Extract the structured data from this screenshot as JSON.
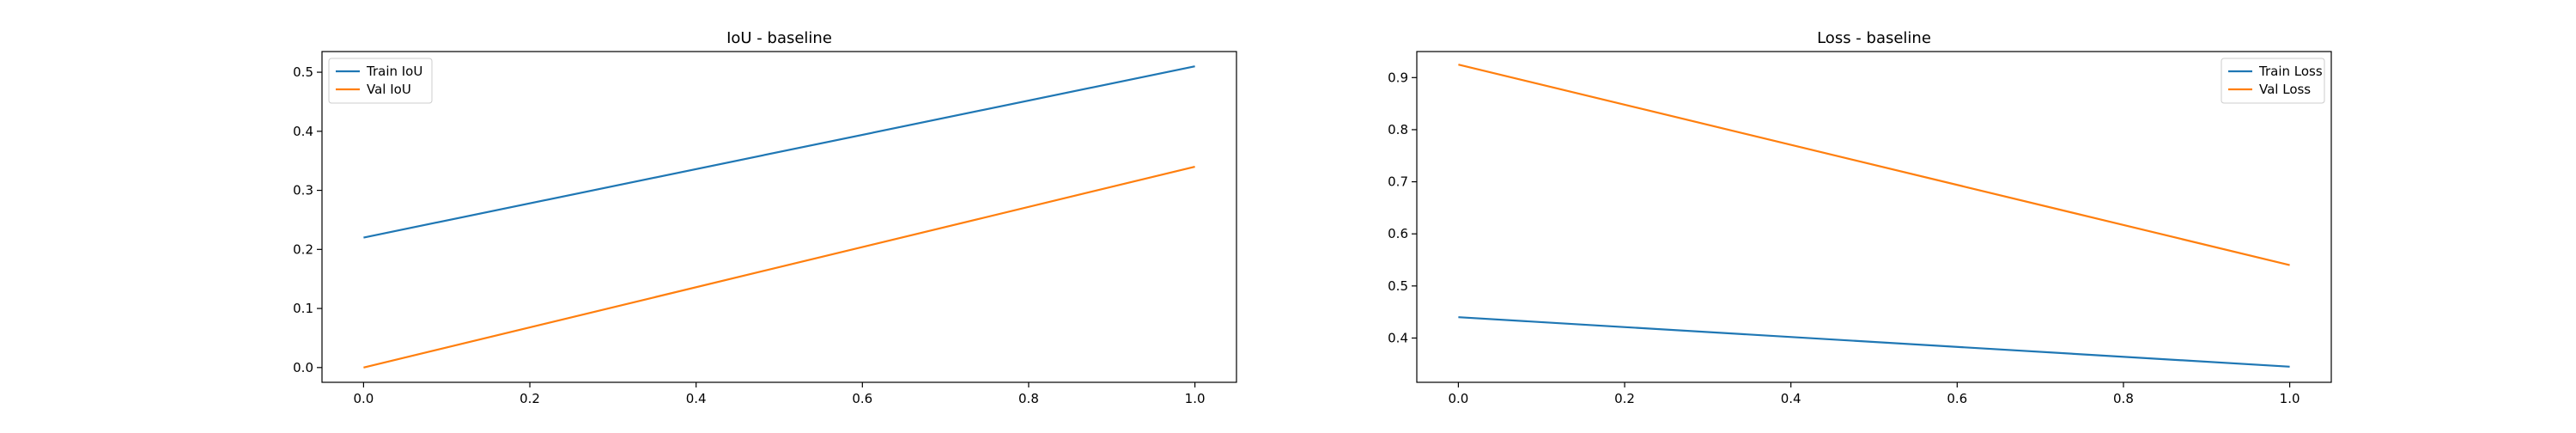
{
  "chart_data": [
    {
      "type": "line",
      "title": "IoU - baseline",
      "xlabel": "",
      "ylabel": "",
      "x": [
        0.0,
        1.0
      ],
      "xlim": [
        -0.05,
        1.05
      ],
      "ylim": [
        -0.025,
        0.535
      ],
      "xticks": [
        0.0,
        0.2,
        0.4,
        0.6,
        0.8,
        1.0
      ],
      "xtick_labels": [
        "0.0",
        "0.2",
        "0.4",
        "0.6",
        "0.8",
        "1.0"
      ],
      "yticks": [
        0.0,
        0.1,
        0.2,
        0.3,
        0.4,
        0.5
      ],
      "ytick_labels": [
        "0.0",
        "0.1",
        "0.2",
        "0.3",
        "0.4",
        "0.5"
      ],
      "grid": false,
      "legend_position": "upper-left",
      "series": [
        {
          "name": "Train IoU",
          "color": "#1f77b4",
          "values": [
            0.22,
            0.51
          ]
        },
        {
          "name": "Val IoU",
          "color": "#ff7f0e",
          "values": [
            0.0,
            0.34
          ]
        }
      ]
    },
    {
      "type": "line",
      "title": "Loss - baseline",
      "xlabel": "",
      "ylabel": "",
      "x": [
        0.0,
        1.0
      ],
      "xlim": [
        -0.05,
        1.05
      ],
      "ylim": [
        0.315,
        0.95
      ],
      "xticks": [
        0.0,
        0.2,
        0.4,
        0.6,
        0.8,
        1.0
      ],
      "xtick_labels": [
        "0.0",
        "0.2",
        "0.4",
        "0.6",
        "0.8",
        "1.0"
      ],
      "yticks": [
        0.4,
        0.5,
        0.6,
        0.7,
        0.8,
        0.9
      ],
      "ytick_labels": [
        "0.4",
        "0.5",
        "0.6",
        "0.7",
        "0.8",
        "0.9"
      ],
      "grid": false,
      "legend_position": "upper-right",
      "series": [
        {
          "name": "Train Loss",
          "color": "#1f77b4",
          "values": [
            0.44,
            0.345
          ]
        },
        {
          "name": "Val Loss",
          "color": "#ff7f0e",
          "values": [
            0.925,
            0.54
          ]
        }
      ]
    }
  ]
}
